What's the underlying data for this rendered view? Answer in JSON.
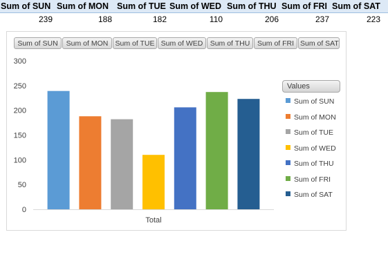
{
  "pivot": {
    "headers": [
      "Sum of SUN",
      "Sum of MON",
      "Sum of TUE",
      "Sum of WED",
      "Sum of THU",
      "Sum of FRI",
      "Sum of SAT"
    ],
    "values": [
      "239",
      "188",
      "182",
      "110",
      "206",
      "237",
      "223"
    ]
  },
  "field_buttons": [
    "Sum of SUN",
    "Sum of MON",
    "Sum of TUE",
    "Sum of WED",
    "Sum of THU",
    "Sum of FRI",
    "Sum of SAT"
  ],
  "legend": {
    "title": "Values"
  },
  "chart_data": {
    "type": "bar",
    "categories": [
      "Total"
    ],
    "series": [
      {
        "name": "Sum of SUN",
        "values": [
          239
        ],
        "color": "#5b9bd5"
      },
      {
        "name": "Sum of MON",
        "values": [
          188
        ],
        "color": "#ed7d31"
      },
      {
        "name": "Sum of TUE",
        "values": [
          182
        ],
        "color": "#a5a5a5"
      },
      {
        "name": "Sum of WED",
        "values": [
          110
        ],
        "color": "#ffc000"
      },
      {
        "name": "Sum of THU",
        "values": [
          206
        ],
        "color": "#4472c4"
      },
      {
        "name": "Sum of FRI",
        "values": [
          237
        ],
        "color": "#70ad47"
      },
      {
        "name": "Sum of SAT",
        "values": [
          223
        ],
        "color": "#255e91"
      }
    ],
    "ylim": [
      0,
      300
    ],
    "yticks": [
      0,
      50,
      100,
      150,
      200,
      250,
      300
    ],
    "grid": false,
    "legend_position": "right"
  }
}
